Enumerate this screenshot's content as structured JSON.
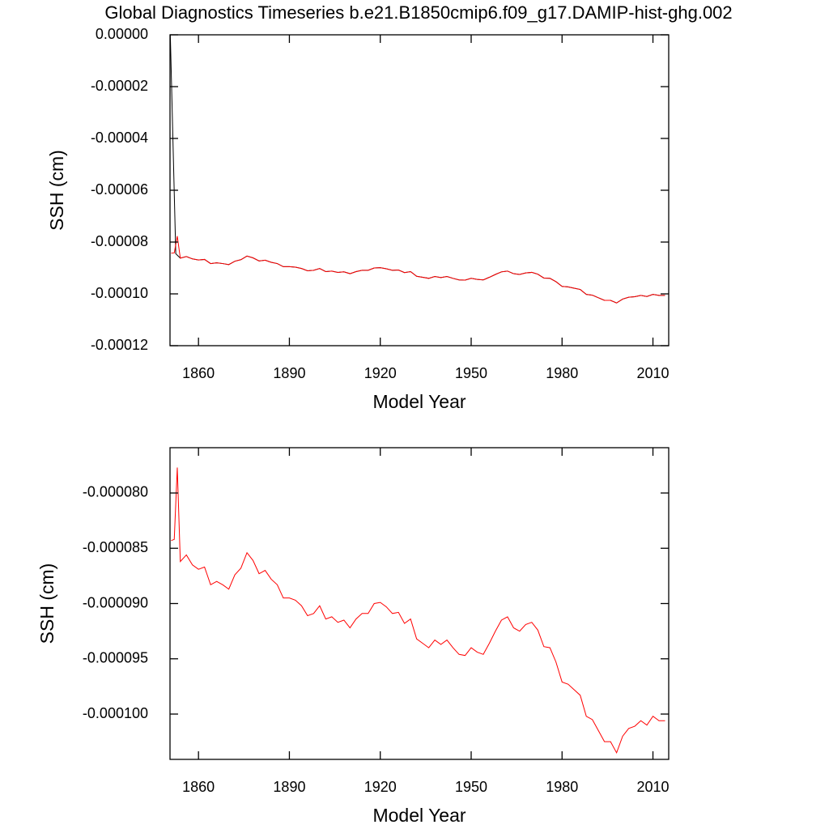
{
  "chart_data": [
    {
      "type": "line",
      "title": "Global Diagnostics Timeseries b.e21.B1850cmip6.f09_g17.DAMIP-hist-ghg.002",
      "xlabel": "Model Year",
      "ylabel": "SSH (cm)",
      "xlim": [
        1850.6,
        2015.2
      ],
      "ylim": [
        -0.00012,
        0
      ],
      "xticks": [
        1860,
        1890,
        1920,
        1950,
        1980,
        2010
      ],
      "yticks": [
        {
          "value": -0.00012,
          "label": "-0.00012"
        },
        {
          "value": -0.0001,
          "label": "-0.00010"
        },
        {
          "value": -8e-05,
          "label": "-0.00008"
        },
        {
          "value": -6e-05,
          "label": "-0.00006"
        },
        {
          "value": -4e-05,
          "label": "-0.00004"
        },
        {
          "value": -2e-05,
          "label": "-0.00002"
        },
        {
          "value": 0,
          "label": "0.00000"
        }
      ],
      "series": [
        {
          "color": "#000000",
          "x": [
            1850.7,
            1852.5,
            1854,
            1856,
            1858,
            1860,
            1862,
            1864,
            1866,
            1868,
            1870,
            1872,
            1874,
            1876,
            1878,
            1880,
            1882,
            1884,
            1886,
            1888,
            1890,
            1892,
            1894,
            1896,
            1898,
            1900,
            1902,
            1904,
            1906,
            1908,
            1910,
            1912,
            1914,
            1916,
            1918,
            1920,
            1922,
            1924,
            1926,
            1928,
            1930,
            1932,
            1934,
            1936,
            1938,
            1940,
            1942,
            1944,
            1946,
            1948,
            1950,
            1952,
            1954,
            1956,
            1958,
            1960,
            1962,
            1964,
            1966,
            1968,
            1970,
            1972,
            1974,
            1976,
            1978,
            1980,
            1982,
            1984,
            1986,
            1988,
            1990,
            1992,
            1994,
            1996,
            1998,
            2000,
            2002,
            2004,
            2006,
            2008,
            2010,
            2012,
            2014
          ],
          "values": [
            0,
            -8.45e-05,
            -8.62e-05,
            -8.56e-05,
            -8.65e-05,
            -8.69e-05,
            -8.67e-05,
            -8.83e-05,
            -8.8e-05,
            -8.83e-05,
            -8.87e-05,
            -8.74e-05,
            -8.68e-05,
            -8.54e-05,
            -8.61e-05,
            -8.73e-05,
            -8.7e-05,
            -8.78e-05,
            -8.83e-05,
            -8.95e-05,
            -8.95e-05,
            -8.97e-05,
            -9.02e-05,
            -9.11e-05,
            -9.09e-05,
            -9.02e-05,
            -9.14e-05,
            -9.12e-05,
            -9.17e-05,
            -9.15e-05,
            -9.22e-05,
            -9.14e-05,
            -9.09e-05,
            -9.09e-05,
            -9e-05,
            -8.99e-05,
            -9.03e-05,
            -9.09e-05,
            -9.08e-05,
            -9.18e-05,
            -9.14e-05,
            -9.32e-05,
            -9.36e-05,
            -9.4e-05,
            -9.33e-05,
            -9.37e-05,
            -9.33e-05,
            -9.4e-05,
            -9.46e-05,
            -9.47e-05,
            -9.4e-05,
            -9.44e-05,
            -9.46e-05,
            -9.36e-05,
            -9.25e-05,
            -9.15e-05,
            -9.12e-05,
            -9.22e-05,
            -9.25e-05,
            -9.19e-05,
            -9.17e-05,
            -9.24e-05,
            -9.39e-05,
            -9.4e-05,
            -9.53e-05,
            -9.71e-05,
            -9.73e-05,
            -9.78e-05,
            -9.83e-05,
            -0.0001002,
            -0.0001005,
            -0.0001015,
            -0.0001025,
            -0.0001025,
            -0.0001035,
            -0.000102,
            -0.0001013,
            -0.0001011,
            -0.0001006,
            -0.000101,
            -0.0001002,
            -0.0001006,
            -0.0001006
          ]
        },
        {
          "color": "#ff0000",
          "x": [
            1851,
            1852,
            1853,
            1854,
            1856,
            1858,
            1860,
            1862,
            1864,
            1866,
            1868,
            1870,
            1872,
            1874,
            1876,
            1878,
            1880,
            1882,
            1884,
            1886,
            1888,
            1890,
            1892,
            1894,
            1896,
            1898,
            1900,
            1902,
            1904,
            1906,
            1908,
            1910,
            1912,
            1914,
            1916,
            1918,
            1920,
            1922,
            1924,
            1926,
            1928,
            1930,
            1932,
            1934,
            1936,
            1938,
            1940,
            1942,
            1944,
            1946,
            1948,
            1950,
            1952,
            1954,
            1956,
            1958,
            1960,
            1962,
            1964,
            1966,
            1968,
            1970,
            1972,
            1974,
            1976,
            1978,
            1980,
            1982,
            1984,
            1986,
            1988,
            1990,
            1992,
            1994,
            1996,
            1998,
            2000,
            2002,
            2004,
            2006,
            2008,
            2010,
            2012,
            2014
          ],
          "values": [
            -8.43e-05,
            -8.42e-05,
            -7.77e-05,
            -8.62e-05,
            -8.56e-05,
            -8.65e-05,
            -8.69e-05,
            -8.67e-05,
            -8.83e-05,
            -8.8e-05,
            -8.83e-05,
            -8.87e-05,
            -8.74e-05,
            -8.68e-05,
            -8.54e-05,
            -8.61e-05,
            -8.73e-05,
            -8.7e-05,
            -8.78e-05,
            -8.83e-05,
            -8.95e-05,
            -8.95e-05,
            -8.97e-05,
            -9.02e-05,
            -9.11e-05,
            -9.09e-05,
            -9.02e-05,
            -9.14e-05,
            -9.12e-05,
            -9.17e-05,
            -9.15e-05,
            -9.22e-05,
            -9.14e-05,
            -9.09e-05,
            -9.09e-05,
            -9e-05,
            -8.99e-05,
            -9.03e-05,
            -9.09e-05,
            -9.08e-05,
            -9.18e-05,
            -9.14e-05,
            -9.32e-05,
            -9.36e-05,
            -9.4e-05,
            -9.33e-05,
            -9.37e-05,
            -9.33e-05,
            -9.4e-05,
            -9.46e-05,
            -9.47e-05,
            -9.4e-05,
            -9.44e-05,
            -9.46e-05,
            -9.36e-05,
            -9.25e-05,
            -9.15e-05,
            -9.12e-05,
            -9.22e-05,
            -9.25e-05,
            -9.19e-05,
            -9.17e-05,
            -9.24e-05,
            -9.39e-05,
            -9.4e-05,
            -9.53e-05,
            -9.71e-05,
            -9.73e-05,
            -9.78e-05,
            -9.83e-05,
            -0.0001002,
            -0.0001005,
            -0.0001015,
            -0.0001025,
            -0.0001025,
            -0.0001035,
            -0.000102,
            -0.0001013,
            -0.0001011,
            -0.0001006,
            -0.000101,
            -0.0001002,
            -0.0001006,
            -0.0001006
          ]
        }
      ]
    },
    {
      "type": "line",
      "xlabel": "Model Year",
      "ylabel": "SSH (cm)",
      "xlim": [
        1850.6,
        2015.2
      ],
      "ylim": [
        -0.0001041,
        -7.59e-05
      ],
      "xticks": [
        1860,
        1890,
        1920,
        1950,
        1980,
        2010
      ],
      "yticks": [
        {
          "value": -0.0001,
          "label": "-0.000100"
        },
        {
          "value": -9.5e-05,
          "label": "-0.000095"
        },
        {
          "value": -9e-05,
          "label": "-0.000090"
        },
        {
          "value": -8.5e-05,
          "label": "-0.000085"
        },
        {
          "value": -8e-05,
          "label": "-0.000080"
        }
      ],
      "series": [
        {
          "color": "#ff0000",
          "x": [
            1851,
            1852,
            1853,
            1854,
            1856,
            1858,
            1860,
            1862,
            1864,
            1866,
            1868,
            1870,
            1872,
            1874,
            1876,
            1878,
            1880,
            1882,
            1884,
            1886,
            1888,
            1890,
            1892,
            1894,
            1896,
            1898,
            1900,
            1902,
            1904,
            1906,
            1908,
            1910,
            1912,
            1914,
            1916,
            1918,
            1920,
            1922,
            1924,
            1926,
            1928,
            1930,
            1932,
            1934,
            1936,
            1938,
            1940,
            1942,
            1944,
            1946,
            1948,
            1950,
            1952,
            1954,
            1956,
            1958,
            1960,
            1962,
            1964,
            1966,
            1968,
            1970,
            1972,
            1974,
            1976,
            1978,
            1980,
            1982,
            1984,
            1986,
            1988,
            1990,
            1992,
            1994,
            1996,
            1998,
            2000,
            2002,
            2004,
            2006,
            2008,
            2010,
            2012,
            2014
          ],
          "values": [
            -8.43e-05,
            -8.42e-05,
            -7.77e-05,
            -8.62e-05,
            -8.56e-05,
            -8.65e-05,
            -8.69e-05,
            -8.67e-05,
            -8.83e-05,
            -8.8e-05,
            -8.83e-05,
            -8.87e-05,
            -8.74e-05,
            -8.68e-05,
            -8.54e-05,
            -8.61e-05,
            -8.73e-05,
            -8.7e-05,
            -8.78e-05,
            -8.83e-05,
            -8.95e-05,
            -8.95e-05,
            -8.97e-05,
            -9.02e-05,
            -9.11e-05,
            -9.09e-05,
            -9.02e-05,
            -9.14e-05,
            -9.12e-05,
            -9.17e-05,
            -9.15e-05,
            -9.22e-05,
            -9.14e-05,
            -9.09e-05,
            -9.09e-05,
            -9e-05,
            -8.99e-05,
            -9.03e-05,
            -9.09e-05,
            -9.08e-05,
            -9.18e-05,
            -9.14e-05,
            -9.32e-05,
            -9.36e-05,
            -9.4e-05,
            -9.33e-05,
            -9.37e-05,
            -9.33e-05,
            -9.4e-05,
            -9.46e-05,
            -9.47e-05,
            -9.4e-05,
            -9.44e-05,
            -9.46e-05,
            -9.36e-05,
            -9.25e-05,
            -9.15e-05,
            -9.12e-05,
            -9.22e-05,
            -9.25e-05,
            -9.19e-05,
            -9.17e-05,
            -9.24e-05,
            -9.39e-05,
            -9.4e-05,
            -9.53e-05,
            -9.71e-05,
            -9.73e-05,
            -9.78e-05,
            -9.83e-05,
            -0.0001002,
            -0.0001005,
            -0.0001015,
            -0.0001025,
            -0.0001025,
            -0.0001035,
            -0.000102,
            -0.0001013,
            -0.0001011,
            -0.0001006,
            -0.000101,
            -0.0001002,
            -0.0001006,
            -0.0001006
          ]
        }
      ]
    }
  ]
}
